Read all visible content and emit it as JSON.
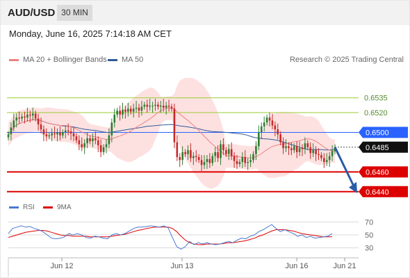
{
  "header": {
    "pair": "AUD/USD",
    "timeframe": "30 MIN"
  },
  "datetime": "Monday, June 16, 2025 7:14:18 AM CET",
  "legend": {
    "ma20_label": "MA 20 + Bollinger Bands",
    "ma50_label": "MA 50",
    "credit": "Research © 2025 Trading Central",
    "rsi_label": "RSI",
    "ma9_label": "9MA"
  },
  "colors": {
    "ma20": "#f08080",
    "ma50": "#2e5a9a",
    "bollinger": "#fcdada",
    "resistance": "#9acd32",
    "support": "#dd0000",
    "pivot": "#2962ff",
    "candle_up": "#2e7d32",
    "candle_down": "#c62828",
    "arrow": "#2a5ca6",
    "rsi": "#4a78d0",
    "rsi_ma": "#dd0000"
  },
  "chart_data": [
    {
      "type": "candlestick",
      "title": "AUD/USD",
      "timeframe": "30 MIN",
      "ylim": [
        0.643,
        0.6558
      ],
      "x_ticks": [
        "Jun 12",
        "Jun 13",
        "Jun 16",
        "Jun 21"
      ],
      "series_close": [
        0.6498,
        0.6505,
        0.6512,
        0.6515,
        0.6514,
        0.6516,
        0.6515,
        0.6518,
        0.6517,
        0.6519,
        0.6514,
        0.6508,
        0.6503,
        0.6498,
        0.6496,
        0.6497,
        0.6499,
        0.6498,
        0.65,
        0.6497,
        0.65,
        0.6502,
        0.6501,
        0.6499,
        0.6496,
        0.6492,
        0.6488,
        0.6485,
        0.6489,
        0.6494,
        0.6491,
        0.6494,
        0.6492,
        0.6487,
        0.648,
        0.6485,
        0.6488,
        0.6497,
        0.651,
        0.6518,
        0.6522,
        0.6518,
        0.6523,
        0.6521,
        0.6524,
        0.6521,
        0.6524,
        0.6525,
        0.6522,
        0.6526,
        0.6528,
        0.6526,
        0.6527,
        0.6527,
        0.6528,
        0.6526,
        0.6527,
        0.6525,
        0.6527,
        0.6526,
        0.6524,
        0.649,
        0.6475,
        0.6472,
        0.648,
        0.6478,
        0.6482,
        0.6474,
        0.6476,
        0.6475,
        0.6472,
        0.6467,
        0.647,
        0.6473,
        0.6469,
        0.6476,
        0.648,
        0.6474,
        0.6488,
        0.6482,
        0.6478,
        0.6483,
        0.6476,
        0.6471,
        0.6468,
        0.647,
        0.6475,
        0.6469,
        0.647,
        0.6472,
        0.6478,
        0.6486,
        0.65,
        0.6506,
        0.651,
        0.6515,
        0.6512,
        0.6507,
        0.6503,
        0.6498,
        0.649,
        0.6484,
        0.6486,
        0.6484,
        0.6482,
        0.6486,
        0.648,
        0.6484,
        0.6483,
        0.6489,
        0.6485,
        0.6479,
        0.6482,
        0.6478,
        0.6477,
        0.6474,
        0.647,
        0.6472,
        0.6476,
        0.6481,
        0.6485
      ],
      "forecast": [
        0.6485,
        0.644
      ],
      "levels": [
        {
          "label": "0.6535",
          "value": 0.6535,
          "kind": "resistance"
        },
        {
          "label": "0.6520",
          "value": 0.652,
          "kind": "resistance"
        },
        {
          "label": "0.6500",
          "value": 0.65,
          "kind": "pivot"
        },
        {
          "label": "0.6485",
          "value": 0.6485,
          "kind": "last"
        },
        {
          "label": "0.6460",
          "value": 0.646,
          "kind": "support"
        },
        {
          "label": "0.6440",
          "value": 0.644,
          "kind": "support"
        }
      ],
      "moving_averages": [
        "MA 20",
        "MA 50"
      ]
    },
    {
      "type": "line",
      "title": "RSI",
      "ylim": [
        20,
        80
      ],
      "y_ticks": [
        "70",
        "50",
        "30"
      ],
      "series": [
        {
          "name": "RSI",
          "values": [
            52,
            60,
            62,
            64,
            62,
            63,
            60,
            58,
            55,
            50,
            45,
            44,
            45,
            47,
            52,
            50,
            52,
            50,
            46,
            45,
            48,
            47,
            45,
            44,
            50,
            52,
            50,
            52,
            56,
            60,
            62,
            62,
            63,
            64,
            63,
            62,
            64,
            61,
            46,
            32,
            28,
            32,
            40,
            35,
            38,
            36,
            38,
            36,
            35,
            36,
            38,
            40,
            38,
            42,
            45,
            44,
            48,
            50,
            55,
            58,
            62,
            66,
            60,
            55,
            58,
            55,
            52,
            48,
            50,
            46,
            48,
            45,
            46,
            47,
            48,
            52
          ]
        },
        {
          "name": "9MA",
          "values": [
            46,
            48,
            50,
            52,
            54,
            55,
            56,
            57,
            57,
            56,
            54,
            52,
            50,
            49,
            49,
            48,
            48,
            48,
            48,
            47,
            47,
            47,
            47,
            47,
            48,
            49,
            50,
            51,
            53,
            55,
            57,
            58,
            60,
            61,
            62,
            62,
            62,
            62,
            60,
            55,
            48,
            42,
            38,
            36,
            35,
            35,
            36,
            36,
            36,
            36,
            37,
            38,
            38,
            39,
            40,
            41,
            43,
            45,
            48,
            50,
            53,
            56,
            58,
            58,
            58,
            57,
            56,
            54,
            52,
            51,
            50,
            49,
            48,
            47,
            47,
            47
          ]
        }
      ]
    }
  ]
}
